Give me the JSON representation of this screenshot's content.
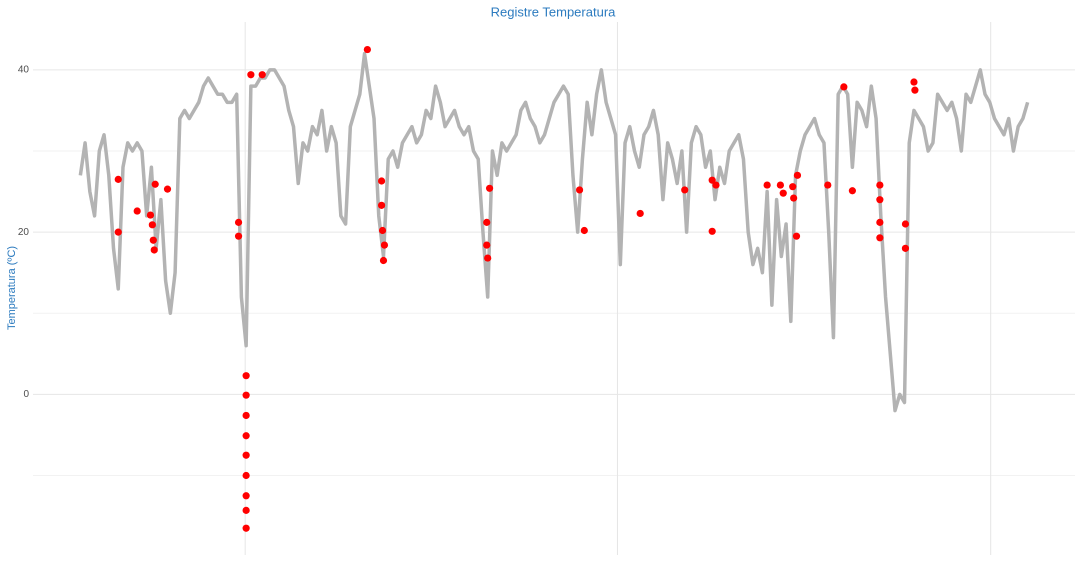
{
  "chart_data": {
    "type": "scatter",
    "title": "Registre Temperatura",
    "y_label": "Temperatura (ºC)",
    "xlim": [
      -5,
      105
    ],
    "ylim": [
      -19.8,
      45.9
    ],
    "yticks": [
      0,
      20,
      40
    ],
    "xticks": [
      17.4,
      56.7,
      96.1
    ],
    "grid": true,
    "series": [
      {
        "color": "#b3b3b3",
        "style": "line",
        "x": [
          0,
          0.5,
          1,
          1.5,
          2,
          2.5,
          3,
          3.5,
          4,
          4.5,
          5,
          5.5,
          6,
          6.5,
          7,
          7.5,
          8,
          8.5,
          9,
          9.5,
          10,
          10.5,
          11,
          11.5,
          12,
          12.5,
          13,
          13.5,
          14,
          14.5,
          15,
          15.5,
          16,
          16.5,
          17,
          17.5,
          18,
          18.5,
          19,
          19.5,
          20,
          20.5,
          21,
          21.5,
          22,
          22.5,
          23,
          23.5,
          24,
          24.5,
          25,
          25.5,
          26,
          26.5,
          27,
          27.5,
          28,
          28.5,
          29,
          29.5,
          30,
          30.5,
          31,
          31.5,
          32,
          32.5,
          33,
          33.5,
          34,
          34.5,
          35,
          35.5,
          36,
          36.5,
          37,
          37.5,
          38,
          38.5,
          39,
          39.5,
          40,
          40.5,
          41,
          41.5,
          42,
          42.5,
          43,
          43.5,
          44,
          44.5,
          45,
          45.5,
          46,
          46.5,
          47,
          47.5,
          48,
          48.5,
          49,
          49.5,
          50,
          50.5,
          51,
          51.5,
          52,
          52.5,
          53,
          53.5,
          54,
          54.5,
          55,
          55.5,
          56,
          56.5,
          57,
          57.5,
          58,
          58.5,
          59,
          59.5,
          60,
          60.5,
          61,
          61.5,
          62,
          62.5,
          63,
          63.5,
          64,
          64.5,
          65,
          65.5,
          66,
          66.5,
          67,
          67.5,
          68,
          68.5,
          69,
          69.5,
          70,
          70.5,
          71,
          71.5,
          72,
          72.5,
          73,
          73.5,
          74,
          74.5,
          75,
          75.5,
          76,
          76.5,
          77,
          77.5,
          78,
          78.5,
          79,
          79.5,
          80,
          80.5,
          81,
          81.5,
          82,
          82.5,
          83,
          83.5,
          84,
          84.5,
          85,
          85.5,
          86,
          86.5,
          87,
          87.5,
          88,
          88.5,
          89,
          89.5,
          90,
          90.5,
          91,
          91.5,
          92,
          92.5,
          93,
          93.5,
          94,
          94.5,
          95,
          95.5,
          96,
          96.5,
          97,
          97.5,
          98,
          98.5,
          99,
          99.5,
          100
        ],
        "values": [
          27,
          31,
          25,
          22,
          30,
          32,
          27,
          18,
          13,
          28,
          31,
          30,
          31,
          30,
          22,
          28,
          18,
          24,
          14,
          10,
          15,
          34,
          35,
          34,
          35,
          36,
          38,
          39,
          38,
          37,
          37,
          36,
          36,
          37,
          12,
          6,
          38,
          38,
          39,
          39,
          40,
          40,
          39,
          38,
          35,
          33,
          26,
          31,
          30,
          33,
          32,
          35,
          30,
          33,
          31,
          22,
          21,
          33,
          35,
          37,
          42,
          38,
          34,
          22,
          17,
          29,
          30,
          28,
          31,
          32,
          33,
          31,
          32,
          35,
          34,
          38,
          36,
          33,
          34,
          35,
          33,
          32,
          33,
          30,
          29,
          20,
          12,
          30,
          27,
          31,
          30,
          31,
          32,
          35,
          36,
          34,
          33,
          31,
          32,
          34,
          36,
          37,
          38,
          37,
          27,
          20,
          29,
          36,
          32,
          37,
          40,
          36,
          34,
          32,
          16,
          31,
          33,
          30,
          28,
          32,
          33,
          35,
          32,
          24,
          31,
          29,
          26,
          30,
          20,
          31,
          33,
          32,
          28,
          30,
          24,
          28,
          26,
          30,
          31,
          32,
          29,
          20,
          16,
          18,
          15,
          25,
          11,
          24,
          17,
          21,
          9,
          27,
          30,
          32,
          33,
          34,
          32,
          31,
          20,
          7,
          37,
          38,
          37,
          28,
          36,
          35,
          33,
          38,
          34,
          22,
          12,
          5,
          -2,
          0,
          -1,
          31,
          35,
          34,
          33,
          30,
          31,
          37,
          36,
          35,
          36,
          34,
          30,
          37,
          36,
          38,
          40,
          37,
          36,
          34,
          33,
          32,
          34,
          30,
          33,
          34,
          36
        ]
      },
      {
        "color": "#ff0000",
        "style": "points",
        "x": [
          4.0,
          4.0,
          6.0,
          7.4,
          7.6,
          7.7,
          7.8,
          7.9,
          9.2,
          16.7,
          16.7,
          17.5,
          17.5,
          17.5,
          17.5,
          17.5,
          17.5,
          17.5,
          17.5,
          17.5,
          18.0,
          19.2,
          30.3,
          31.8,
          31.8,
          31.9,
          32.1,
          32.0,
          43.2,
          42.9,
          42.9,
          43.0,
          52.7,
          53.2,
          59.1,
          63.8,
          66.7,
          67.1,
          66.7,
          72.5,
          73.9,
          74.2,
          75.2,
          75.3,
          75.6,
          75.7,
          78.9,
          80.6,
          81.5,
          84.4,
          84.4,
          84.4,
          84.4,
          87.1,
          87.1,
          88.0,
          88.1
        ],
        "values": [
          26.5,
          20.0,
          22.6,
          22.1,
          20.9,
          19.0,
          17.8,
          25.9,
          25.3,
          21.2,
          19.5,
          2.3,
          -0.1,
          -2.6,
          -5.1,
          -7.5,
          -10,
          -12.5,
          -14.3,
          -16.5,
          39.4,
          39.4,
          42.5,
          26.3,
          23.3,
          20.2,
          18.4,
          16.5,
          25.4,
          21.2,
          18.4,
          16.8,
          25.2,
          20.2,
          22.3,
          25.2,
          26.4,
          25.8,
          20.1,
          25.8,
          25.8,
          24.8,
          25.6,
          24.2,
          19.5,
          27.0,
          25.8,
          37.9,
          25.1,
          25.8,
          24.0,
          21.2,
          19.3,
          21.0,
          18.0,
          38.5,
          37.5
        ]
      }
    ]
  }
}
